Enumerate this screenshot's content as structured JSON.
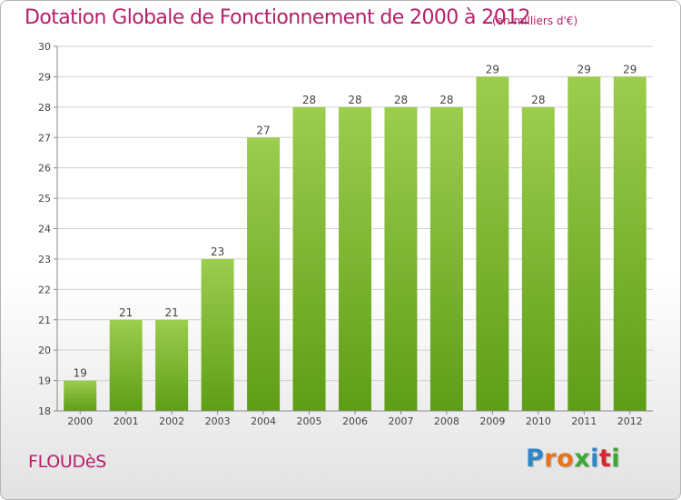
{
  "header": {
    "title": "Dotation Globale de Fonctionnement de 2000 à 2012",
    "unit_note": "(en milliers d'€)"
  },
  "footer": {
    "commune": "FLOUDèS",
    "logo_letters": [
      "P",
      "r",
      "o",
      "x",
      "i",
      "t",
      "i"
    ],
    "logo_colors": [
      "#2e86c8",
      "#e8731a",
      "#e8731a",
      "#3aa832",
      "#2e86c8",
      "#d8262e",
      "#3aa832"
    ]
  },
  "colors": {
    "accent": "#b4206a",
    "bar_light": "#9ccd4d",
    "bar_dark": "#5e9e16",
    "grid": "#d0d0d0"
  },
  "chart_data": {
    "type": "bar",
    "categories": [
      "2000",
      "2001",
      "2002",
      "2003",
      "2004",
      "2005",
      "2006",
      "2007",
      "2008",
      "2009",
      "2010",
      "2011",
      "2012"
    ],
    "values": [
      19,
      21,
      21,
      23,
      27,
      28,
      28,
      28,
      28,
      29,
      28,
      29,
      29
    ],
    "ylim": [
      18,
      30
    ],
    "yticks": [
      18,
      19,
      20,
      21,
      22,
      23,
      24,
      25,
      26,
      27,
      28,
      29,
      30
    ],
    "grid": true,
    "data_labels": true
  }
}
